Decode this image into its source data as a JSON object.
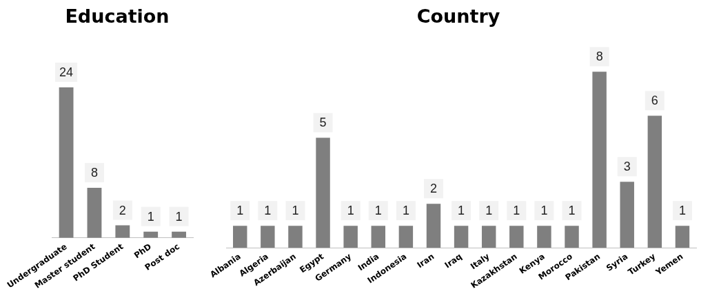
{
  "chart_data": [
    {
      "type": "bar",
      "title": "Education",
      "categories": [
        "Undergraduate",
        "Master student",
        "PhD Student",
        "PhD",
        "Post doc"
      ],
      "values": [
        24,
        8,
        2,
        1,
        1
      ],
      "color": "#7f7f7f",
      "data_labels": true,
      "grid": false,
      "legend": false
    },
    {
      "type": "bar",
      "title": "Country",
      "categories": [
        "Albania",
        "Algeria",
        "Azerbaijan",
        "Egypt",
        "Germany",
        "India",
        "Indonesia",
        "Iran",
        "Iraq",
        "Italy",
        "Kazakhstan",
        "Kenya",
        "Morocco",
        "Pakistan",
        "Syria",
        "Turkey",
        "Yemen"
      ],
      "values": [
        1,
        1,
        1,
        5,
        1,
        1,
        1,
        2,
        1,
        1,
        1,
        1,
        1,
        8,
        3,
        6,
        1
      ],
      "color": "#7f7f7f",
      "data_labels": true,
      "grid": false,
      "legend": false
    }
  ]
}
